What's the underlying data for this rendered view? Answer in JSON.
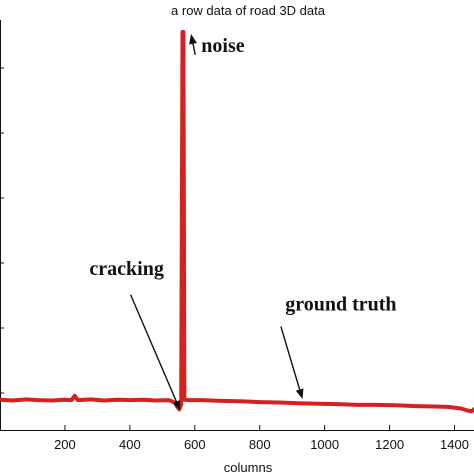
{
  "chart_data": {
    "type": "line",
    "title": "a row data of road 3D data",
    "xlabel": "columns",
    "ylabel": "",
    "xlim": [
      0,
      1460
    ],
    "ylim": [
      0,
      100
    ],
    "xticks": [
      200,
      400,
      600,
      800,
      1000,
      1200,
      1400
    ],
    "grid": false,
    "legend": "none",
    "series": [
      {
        "color": "#d42222",
        "points": [
          [
            0,
            7.6
          ],
          [
            40,
            7.4
          ],
          [
            80,
            7.7
          ],
          [
            120,
            7.5
          ],
          [
            160,
            7.4
          ],
          [
            200,
            7.6
          ],
          [
            220,
            7.5
          ],
          [
            230,
            8.6
          ],
          [
            240,
            7.5
          ],
          [
            280,
            7.7
          ],
          [
            320,
            7.4
          ],
          [
            360,
            7.6
          ],
          [
            400,
            7.5
          ],
          [
            440,
            7.6
          ],
          [
            480,
            7.4
          ],
          [
            520,
            7.5
          ],
          [
            538,
            6.9
          ],
          [
            546,
            5.8
          ],
          [
            552,
            5.2
          ],
          [
            558,
            6.4
          ],
          [
            562,
            100
          ],
          [
            565,
            100
          ],
          [
            568,
            7.6
          ],
          [
            580,
            7.5
          ],
          [
            620,
            7.5
          ],
          [
            680,
            7.3
          ],
          [
            740,
            7.2
          ],
          [
            800,
            7.0
          ],
          [
            860,
            6.9
          ],
          [
            920,
            6.7
          ],
          [
            980,
            6.6
          ],
          [
            1040,
            6.5
          ],
          [
            1100,
            6.3
          ],
          [
            1160,
            6.3
          ],
          [
            1220,
            6.2
          ],
          [
            1280,
            6.0
          ],
          [
            1340,
            5.9
          ],
          [
            1380,
            5.8
          ],
          [
            1420,
            5.4
          ],
          [
            1440,
            4.9
          ],
          [
            1452,
            4.7
          ],
          [
            1460,
            5.2
          ]
        ]
      }
    ],
    "annotations": [
      {
        "text": "noise",
        "x": 620,
        "y": 95,
        "point_x": 565,
        "point_y": 99
      },
      {
        "text": "cracking",
        "x": 390,
        "y": 39,
        "point_x": 553,
        "point_y": 5.3
      },
      {
        "text": "ground truth",
        "x": 1050,
        "y": 30,
        "point_x": 930,
        "point_y": 7.0
      }
    ]
  }
}
